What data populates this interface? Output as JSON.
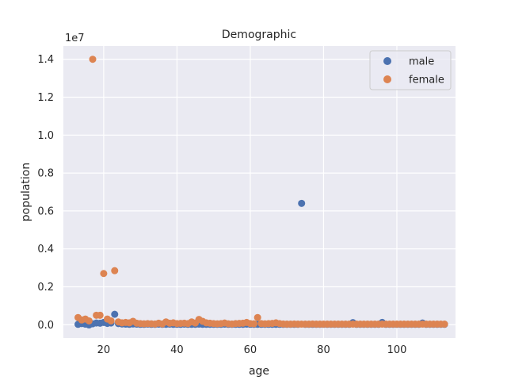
{
  "chart_data": {
    "type": "scatter",
    "title": "Demographic",
    "xlabel": "age",
    "ylabel": "population",
    "offset_label": "1e7",
    "xlim": [
      9,
      116
    ],
    "ylim": [
      -700000,
      14700000
    ],
    "xticks": [
      20,
      40,
      60,
      80,
      100
    ],
    "yticks": [
      0,
      2000000,
      4000000,
      6000000,
      8000000,
      10000000,
      12000000,
      14000000
    ],
    "ytick_labels": [
      "0.0",
      "0.2",
      "0.4",
      "0.6",
      "0.8",
      "1.0",
      "1.2",
      "1.4"
    ],
    "grid": true,
    "legend_position": "top-right",
    "series": [
      {
        "name": "male",
        "color": "#4c72b0",
        "points": [
          [
            13,
            20000
          ],
          [
            14,
            60000
          ],
          [
            15,
            30000
          ],
          [
            16,
            -10000
          ],
          [
            17,
            50000
          ],
          [
            18,
            90000
          ],
          [
            19,
            80000
          ],
          [
            20,
            120000
          ],
          [
            21,
            70000
          ],
          [
            22,
            90000
          ],
          [
            23,
            550000
          ],
          [
            24,
            60000
          ],
          [
            25,
            40000
          ],
          [
            26,
            30000
          ],
          [
            27,
            20000
          ],
          [
            28,
            40000
          ],
          [
            29,
            30000
          ],
          [
            30,
            20000
          ],
          [
            31,
            20000
          ],
          [
            32,
            30000
          ],
          [
            33,
            20000
          ],
          [
            34,
            20000
          ],
          [
            35,
            30000
          ],
          [
            36,
            20000
          ],
          [
            37,
            20000
          ],
          [
            38,
            30000
          ],
          [
            39,
            20000
          ],
          [
            40,
            20000
          ],
          [
            41,
            20000
          ],
          [
            42,
            30000
          ],
          [
            43,
            20000
          ],
          [
            44,
            20000
          ],
          [
            45,
            20000
          ],
          [
            46,
            30000
          ],
          [
            47,
            20000
          ],
          [
            48,
            20000
          ],
          [
            49,
            20000
          ],
          [
            50,
            20000
          ],
          [
            51,
            20000
          ],
          [
            52,
            20000
          ],
          [
            53,
            30000
          ],
          [
            54,
            20000
          ],
          [
            55,
            20000
          ],
          [
            56,
            20000
          ],
          [
            57,
            20000
          ],
          [
            58,
            20000
          ],
          [
            59,
            30000
          ],
          [
            60,
            20000
          ],
          [
            61,
            20000
          ],
          [
            62,
            20000
          ],
          [
            63,
            20000
          ],
          [
            64,
            20000
          ],
          [
            65,
            20000
          ],
          [
            66,
            20000
          ],
          [
            67,
            20000
          ],
          [
            68,
            20000
          ],
          [
            69,
            20000
          ],
          [
            70,
            20000
          ],
          [
            71,
            20000
          ],
          [
            72,
            20000
          ],
          [
            73,
            20000
          ],
          [
            74,
            6400000
          ],
          [
            75,
            20000
          ],
          [
            76,
            20000
          ],
          [
            77,
            20000
          ],
          [
            78,
            20000
          ],
          [
            79,
            20000
          ],
          [
            80,
            20000
          ],
          [
            81,
            20000
          ],
          [
            82,
            20000
          ],
          [
            83,
            20000
          ],
          [
            84,
            20000
          ],
          [
            85,
            20000
          ],
          [
            86,
            20000
          ],
          [
            87,
            20000
          ],
          [
            88,
            110000
          ],
          [
            89,
            20000
          ],
          [
            90,
            20000
          ],
          [
            91,
            20000
          ],
          [
            92,
            20000
          ],
          [
            93,
            20000
          ],
          [
            94,
            20000
          ],
          [
            95,
            20000
          ],
          [
            96,
            120000
          ],
          [
            97,
            20000
          ],
          [
            98,
            20000
          ],
          [
            99,
            20000
          ],
          [
            100,
            20000
          ],
          [
            101,
            20000
          ],
          [
            102,
            20000
          ],
          [
            103,
            20000
          ],
          [
            104,
            20000
          ],
          [
            105,
            20000
          ],
          [
            106,
            20000
          ],
          [
            107,
            90000
          ],
          [
            108,
            20000
          ],
          [
            109,
            20000
          ],
          [
            110,
            20000
          ],
          [
            111,
            20000
          ],
          [
            112,
            20000
          ],
          [
            113,
            20000
          ]
        ]
      },
      {
        "name": "female",
        "color": "#dd8452",
        "points": [
          [
            13,
            380000
          ],
          [
            14,
            250000
          ],
          [
            15,
            300000
          ],
          [
            16,
            200000
          ],
          [
            17,
            14000000
          ],
          [
            18,
            500000
          ],
          [
            19,
            500000
          ],
          [
            20,
            2700000
          ],
          [
            21,
            300000
          ],
          [
            22,
            200000
          ],
          [
            23,
            2850000
          ],
          [
            24,
            150000
          ],
          [
            25,
            100000
          ],
          [
            26,
            120000
          ],
          [
            27,
            100000
          ],
          [
            28,
            180000
          ],
          [
            29,
            80000
          ],
          [
            30,
            60000
          ],
          [
            31,
            50000
          ],
          [
            32,
            60000
          ],
          [
            33,
            50000
          ],
          [
            34,
            40000
          ],
          [
            35,
            80000
          ],
          [
            36,
            40000
          ],
          [
            37,
            150000
          ],
          [
            38,
            80000
          ],
          [
            39,
            100000
          ],
          [
            40,
            60000
          ],
          [
            41,
            70000
          ],
          [
            42,
            80000
          ],
          [
            43,
            60000
          ],
          [
            44,
            150000
          ],
          [
            45,
            90000
          ],
          [
            46,
            280000
          ],
          [
            47,
            180000
          ],
          [
            48,
            100000
          ],
          [
            49,
            80000
          ],
          [
            50,
            60000
          ],
          [
            51,
            50000
          ],
          [
            52,
            60000
          ],
          [
            53,
            90000
          ],
          [
            54,
            50000
          ],
          [
            55,
            40000
          ],
          [
            56,
            60000
          ],
          [
            57,
            70000
          ],
          [
            58,
            80000
          ],
          [
            59,
            120000
          ],
          [
            60,
            60000
          ],
          [
            61,
            50000
          ],
          [
            62,
            380000
          ],
          [
            63,
            60000
          ],
          [
            64,
            50000
          ],
          [
            65,
            60000
          ],
          [
            66,
            70000
          ],
          [
            67,
            100000
          ],
          [
            68,
            60000
          ],
          [
            69,
            40000
          ],
          [
            70,
            30000
          ],
          [
            71,
            30000
          ],
          [
            72,
            40000
          ],
          [
            73,
            30000
          ],
          [
            74,
            30000
          ],
          [
            75,
            30000
          ],
          [
            76,
            30000
          ],
          [
            77,
            40000
          ],
          [
            78,
            30000
          ],
          [
            79,
            30000
          ],
          [
            80,
            30000
          ],
          [
            81,
            30000
          ],
          [
            82,
            30000
          ],
          [
            83,
            30000
          ],
          [
            84,
            30000
          ],
          [
            85,
            30000
          ],
          [
            86,
            30000
          ],
          [
            87,
            30000
          ],
          [
            88,
            30000
          ],
          [
            89,
            30000
          ],
          [
            90,
            30000
          ],
          [
            91,
            30000
          ],
          [
            92,
            30000
          ],
          [
            93,
            30000
          ],
          [
            94,
            30000
          ],
          [
            95,
            30000
          ],
          [
            96,
            30000
          ],
          [
            97,
            30000
          ],
          [
            98,
            30000
          ],
          [
            99,
            30000
          ],
          [
            100,
            30000
          ],
          [
            101,
            30000
          ],
          [
            102,
            30000
          ],
          [
            103,
            30000
          ],
          [
            104,
            30000
          ],
          [
            105,
            30000
          ],
          [
            106,
            30000
          ],
          [
            107,
            30000
          ],
          [
            108,
            30000
          ],
          [
            109,
            30000
          ],
          [
            110,
            30000
          ],
          [
            111,
            30000
          ],
          [
            112,
            30000
          ],
          [
            113,
            30000
          ]
        ]
      }
    ]
  }
}
